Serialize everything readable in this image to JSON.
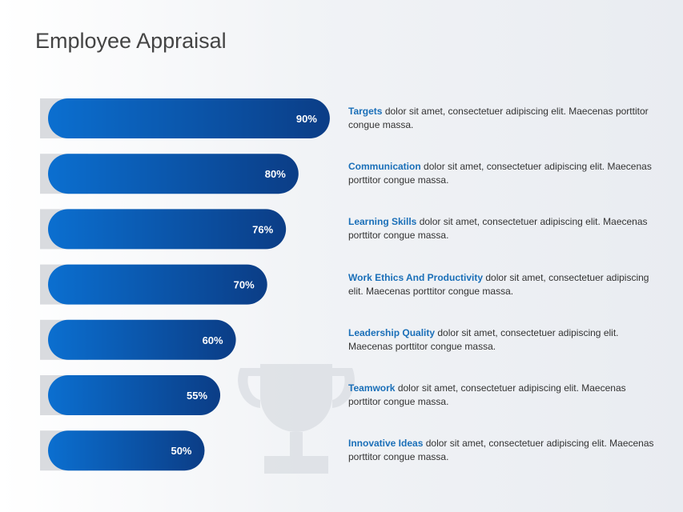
{
  "chart_data": {
    "type": "bar",
    "title": "Employee Appraisal",
    "categories": [
      "Targets",
      "Communication",
      "Learning Skills",
      "Work Ethics And Productivity",
      "Leadership Quality",
      "Teamwork",
      "Innovative Ideas"
    ],
    "values": [
      90,
      80,
      76,
      70,
      60,
      55,
      50
    ],
    "value_labels": [
      "90%",
      "80%",
      "76%",
      "70%",
      "60%",
      "55%",
      "50%"
    ],
    "descriptions": [
      "dolor sit amet, consectetuer adipiscing elit. Maecenas porttitor congue massa.",
      "dolor sit amet, consectetuer adipiscing elit. Maecenas porttitor congue massa.",
      "dolor sit amet, consectetuer adipiscing elit. Maecenas porttitor congue massa.",
      "dolor sit amet, consectetuer adipiscing elit. Maecenas porttitor congue massa.",
      "dolor sit amet, consectetuer adipiscing elit. Maecenas porttitor congue massa.",
      "dolor sit amet, consectetuer adipiscing elit. Maecenas porttitor congue massa.",
      "dolor sit amet, consectetuer adipiscing elit. Maecenas porttitor congue massa."
    ],
    "color": "#0a5fb8"
  }
}
